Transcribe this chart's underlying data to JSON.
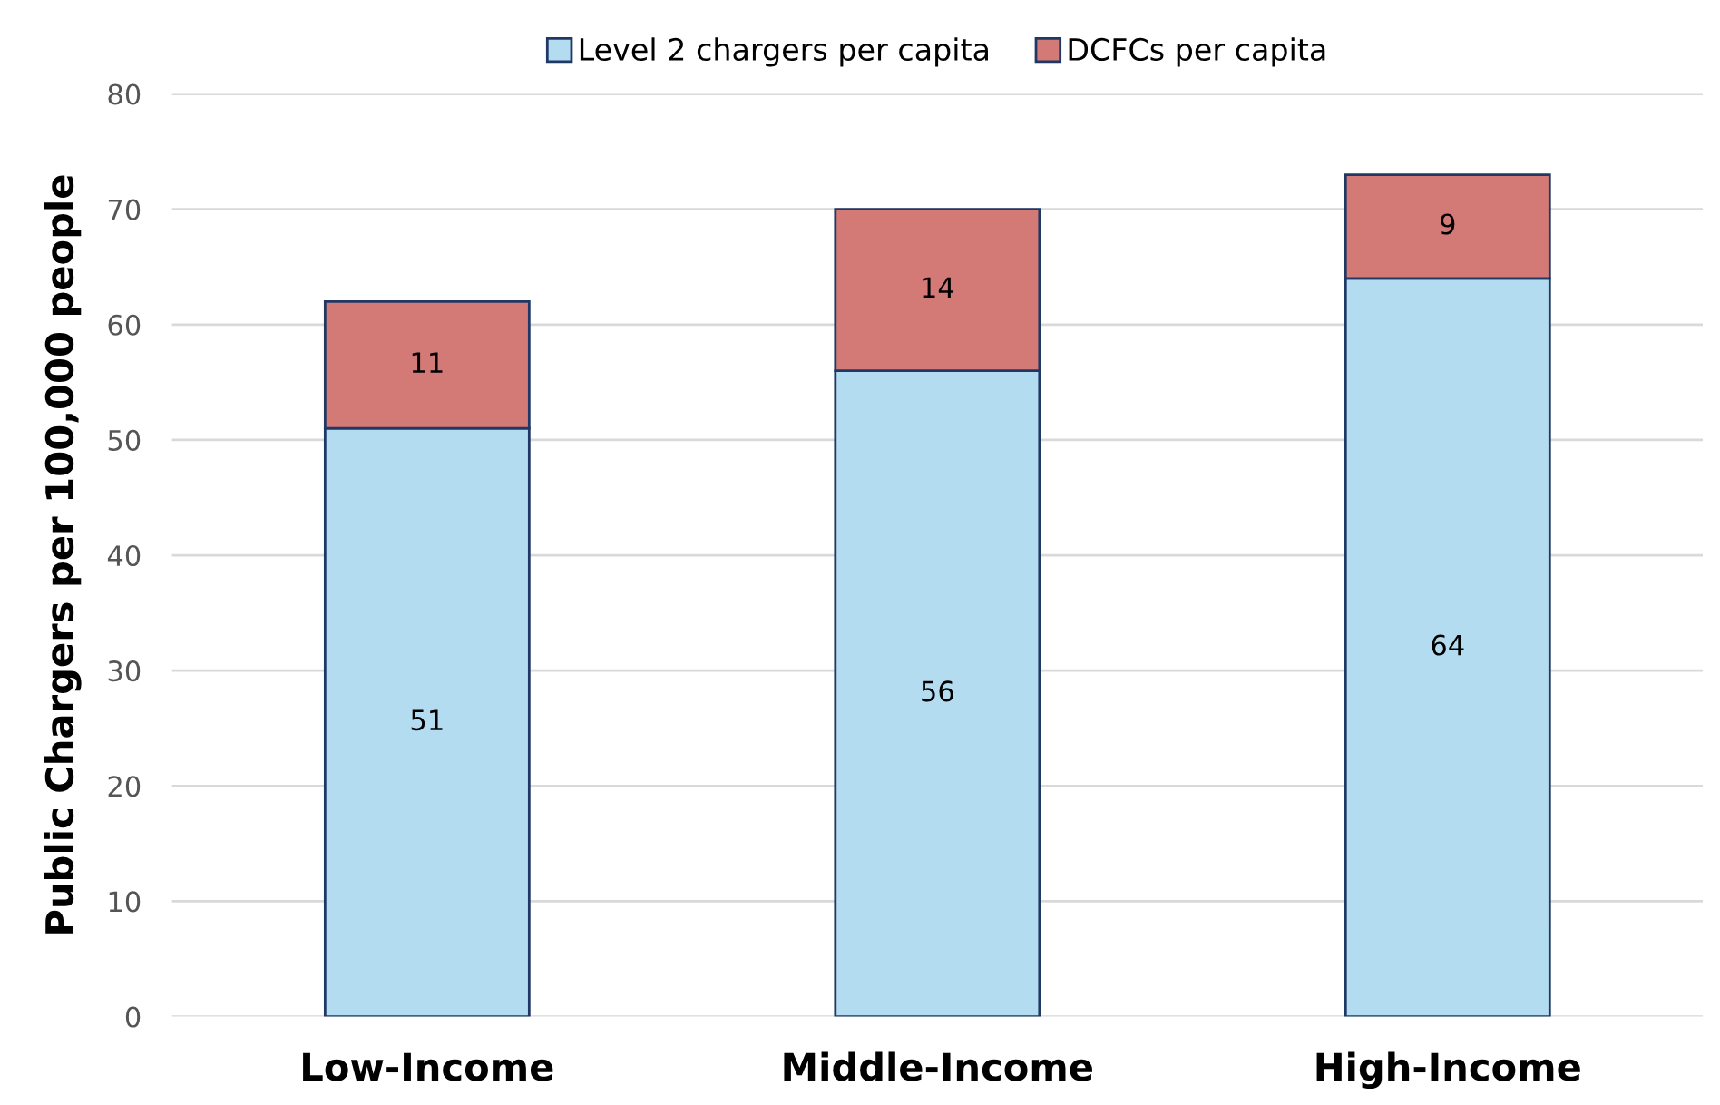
{
  "chart_data": {
    "type": "bar",
    "stacked": true,
    "ylabel": "Public Chargers per 100,000 people",
    "categories": [
      "Low-Income",
      "Middle-Income",
      "High-Income"
    ],
    "series": [
      {
        "name": "Level 2 chargers per capita",
        "color": "#b4dcf0",
        "values": [
          51,
          56,
          64
        ]
      },
      {
        "name": "DCFCs per capita",
        "color": "#d47a76",
        "values": [
          11,
          14,
          9
        ]
      }
    ],
    "ylim": [
      0,
      80
    ],
    "yticks": [
      0,
      10,
      20,
      30,
      40,
      50,
      60,
      70,
      80
    ],
    "grid": "y",
    "legend": "top",
    "data_labels": true
  }
}
